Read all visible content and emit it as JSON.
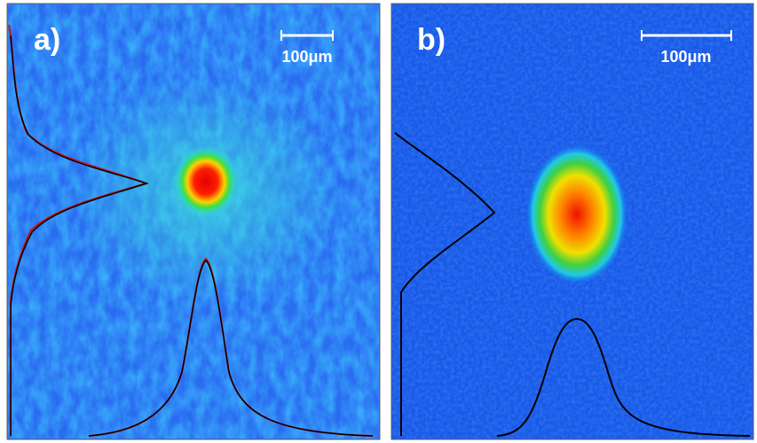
{
  "panels": [
    {
      "label": "a)",
      "scale_bar": "100μm"
    },
    {
      "label": "b)",
      "scale_bar": "100μm"
    }
  ]
}
